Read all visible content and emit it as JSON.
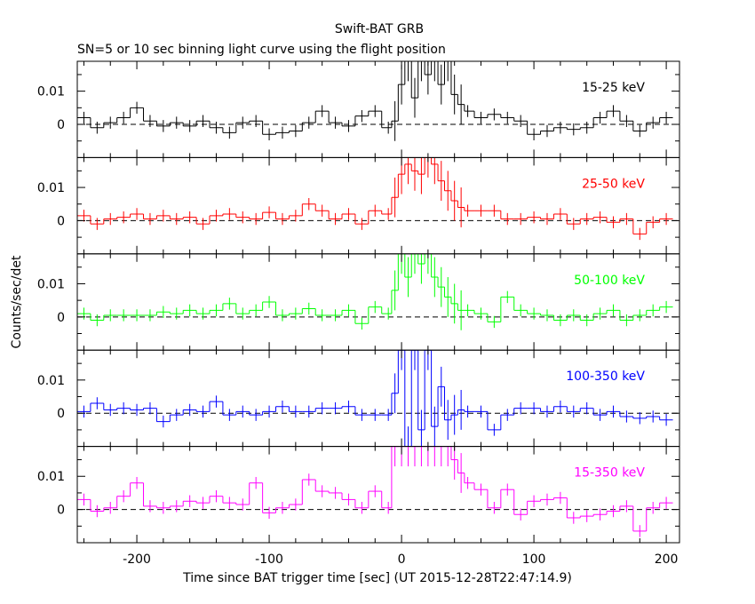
{
  "chart_data": {
    "type": "line",
    "title": "Swift-BAT GRB",
    "subtitle": "SN=5 or 10 sec binning light curve using the flight position",
    "xlabel": "Time since BAT trigger time [sec] (UT 2015-12-28T22:47:14.9)",
    "ylabel": "Counts/sec/det",
    "xlim": [
      -245,
      210
    ],
    "x_ticks": [
      -200,
      -100,
      0,
      100,
      200
    ],
    "grid": false,
    "reference_line": 0,
    "panels": [
      {
        "band": "15-25 keV",
        "color": "#000000",
        "ylim": [
          -0.01,
          0.019
        ],
        "y_ticks": [
          0,
          0.01
        ],
        "y_tick_labels": [
          "0",
          "0.01"
        ],
        "bins": [
          [
            -240,
            0.002
          ],
          [
            -230,
            -0.001
          ],
          [
            -220,
            0.0005
          ],
          [
            -210,
            0.002
          ],
          [
            -200,
            0.005
          ],
          [
            -190,
            0.001
          ],
          [
            -180,
            -0.0005
          ],
          [
            -170,
            0.0005
          ],
          [
            -160,
            -0.0005
          ],
          [
            -150,
            0.001
          ],
          [
            -140,
            -0.001
          ],
          [
            -130,
            -0.0025
          ],
          [
            -120,
            0.0005
          ],
          [
            -110,
            0.001
          ],
          [
            -100,
            -0.003
          ],
          [
            -90,
            -0.0025
          ],
          [
            -80,
            -0.002
          ],
          [
            -70,
            0.0005
          ],
          [
            -60,
            0.004
          ],
          [
            -50,
            0.0005
          ],
          [
            -40,
            -0.0005
          ],
          [
            -30,
            0.0025
          ],
          [
            -20,
            0.004
          ],
          [
            -10,
            -0.001
          ],
          [
            -5,
            0.001
          ],
          [
            0,
            0.012
          ],
          [
            5,
            0.019
          ],
          [
            10,
            0.008
          ],
          [
            15,
            0.019
          ],
          [
            20,
            0.015
          ],
          [
            25,
            0.019
          ],
          [
            30,
            0.012
          ],
          [
            35,
            0.019
          ],
          [
            40,
            0.009
          ],
          [
            45,
            0.006
          ],
          [
            50,
            0.004
          ],
          [
            60,
            0.002
          ],
          [
            70,
            0.003
          ],
          [
            80,
            0.002
          ],
          [
            90,
            0.001
          ],
          [
            100,
            -0.003
          ],
          [
            110,
            -0.002
          ],
          [
            120,
            -0.001
          ],
          [
            130,
            -0.0015
          ],
          [
            140,
            -0.001
          ],
          [
            150,
            0.002
          ],
          [
            160,
            0.004
          ],
          [
            170,
            0.001
          ],
          [
            180,
            -0.002
          ],
          [
            190,
            0.0005
          ],
          [
            200,
            0.002
          ]
        ]
      },
      {
        "band": "25-50 keV",
        "color": "#ff0000",
        "ylim": [
          -0.01,
          0.019
        ],
        "y_ticks": [
          0,
          0.01
        ],
        "y_tick_labels": [
          "0",
          "0.01"
        ],
        "bins": [
          [
            -240,
            0.0015
          ],
          [
            -230,
            -0.001
          ],
          [
            -220,
            0.0005
          ],
          [
            -210,
            0.001
          ],
          [
            -200,
            0.002
          ],
          [
            -190,
            0.0005
          ],
          [
            -180,
            0.0015
          ],
          [
            -170,
            0.0005
          ],
          [
            -160,
            0.001
          ],
          [
            -150,
            -0.001
          ],
          [
            -140,
            0.0015
          ],
          [
            -130,
            0.002
          ],
          [
            -120,
            0.001
          ],
          [
            -110,
            0.0005
          ],
          [
            -100,
            0.0025
          ],
          [
            -90,
            0.0005
          ],
          [
            -80,
            0.0015
          ],
          [
            -70,
            0.005
          ],
          [
            -60,
            0.003
          ],
          [
            -50,
            0.0005
          ],
          [
            -40,
            0.002
          ],
          [
            -30,
            -0.001
          ],
          [
            -20,
            0.003
          ],
          [
            -10,
            0.002
          ],
          [
            -5,
            0.007
          ],
          [
            0,
            0.014
          ],
          [
            5,
            0.017
          ],
          [
            10,
            0.015
          ],
          [
            15,
            0.014
          ],
          [
            20,
            0.019
          ],
          [
            25,
            0.017
          ],
          [
            30,
            0.012
          ],
          [
            35,
            0.009
          ],
          [
            40,
            0.006
          ],
          [
            45,
            0.004
          ],
          [
            50,
            0.003
          ],
          [
            60,
            0.003
          ],
          [
            70,
            0.003
          ],
          [
            80,
            0.0005
          ],
          [
            90,
            0.0005
          ],
          [
            100,
            0.001
          ],
          [
            110,
            0.0005
          ],
          [
            120,
            0.002
          ],
          [
            130,
            -0.001
          ],
          [
            140,
            0.0005
          ],
          [
            150,
            0.001
          ],
          [
            160,
            -0.0005
          ],
          [
            170,
            0.0005
          ],
          [
            180,
            -0.004
          ],
          [
            190,
            -0.0005
          ],
          [
            200,
            0.0005
          ]
        ]
      },
      {
        "band": "50-100 keV",
        "color": "#00ff00",
        "ylim": [
          -0.01,
          0.019
        ],
        "y_ticks": [
          0,
          0.01
        ],
        "y_tick_labels": [
          "0",
          "0.01"
        ],
        "bins": [
          [
            -240,
            0.001
          ],
          [
            -230,
            -0.001
          ],
          [
            -220,
            0.0005
          ],
          [
            -210,
            0.0005
          ],
          [
            -200,
            0.0005
          ],
          [
            -190,
            0.0005
          ],
          [
            -180,
            0.0015
          ],
          [
            -170,
            0.001
          ],
          [
            -160,
            0.002
          ],
          [
            -150,
            0.001
          ],
          [
            -140,
            0.002
          ],
          [
            -130,
            0.004
          ],
          [
            -120,
            0.001
          ],
          [
            -110,
            0.002
          ],
          [
            -100,
            0.0045
          ],
          [
            -90,
            0.0005
          ],
          [
            -80,
            0.001
          ],
          [
            -70,
            0.0025
          ],
          [
            -60,
            0.0005
          ],
          [
            -50,
            0.0005
          ],
          [
            -40,
            0.002
          ],
          [
            -30,
            -0.002
          ],
          [
            -20,
            0.003
          ],
          [
            -10,
            0.001
          ],
          [
            -5,
            0.008
          ],
          [
            0,
            0.019
          ],
          [
            5,
            0.012
          ],
          [
            10,
            0.019
          ],
          [
            15,
            0.016
          ],
          [
            20,
            0.019
          ],
          [
            25,
            0.012
          ],
          [
            30,
            0.009
          ],
          [
            35,
            0.006
          ],
          [
            40,
            0.004
          ],
          [
            45,
            0.002
          ],
          [
            50,
            0.002
          ],
          [
            60,
            0.001
          ],
          [
            70,
            -0.0015
          ],
          [
            80,
            0.006
          ],
          [
            90,
            0.002
          ],
          [
            100,
            0.001
          ],
          [
            110,
            0.0005
          ],
          [
            120,
            -0.001
          ],
          [
            130,
            0.0005
          ],
          [
            140,
            -0.001
          ],
          [
            150,
            0.001
          ],
          [
            160,
            0.002
          ],
          [
            170,
            -0.001
          ],
          [
            180,
            0.0005
          ],
          [
            190,
            0.002
          ],
          [
            200,
            0.003
          ]
        ]
      },
      {
        "band": "100-350 keV",
        "color": "#0000ff",
        "ylim": [
          -0.01,
          0.019
        ],
        "y_ticks": [
          0,
          0.01
        ],
        "y_tick_labels": [
          "0",
          "0.01"
        ],
        "bins": [
          [
            -240,
            0.0005
          ],
          [
            -230,
            0.003
          ],
          [
            -220,
            0.001
          ],
          [
            -210,
            0.0015
          ],
          [
            -200,
            0.001
          ],
          [
            -190,
            0.0015
          ],
          [
            -180,
            -0.0025
          ],
          [
            -170,
            -0.0005
          ],
          [
            -160,
            0.001
          ],
          [
            -150,
            0.0005
          ],
          [
            -140,
            0.0035
          ],
          [
            -130,
            -0.0005
          ],
          [
            -120,
            0.0005
          ],
          [
            -110,
            -0.0005
          ],
          [
            -100,
            0.0005
          ],
          [
            -90,
            0.002
          ],
          [
            -80,
            0.0005
          ],
          [
            -70,
            0.0005
          ],
          [
            -60,
            0.0015
          ],
          [
            -50,
            0.0015
          ],
          [
            -40,
            0.002
          ],
          [
            -30,
            -0.0005
          ],
          [
            -20,
            -0.0005
          ],
          [
            -10,
            -0.0005
          ],
          [
            -5,
            0.006
          ],
          [
            0,
            0.019
          ],
          [
            5,
            -0.01
          ],
          [
            10,
            0.019
          ],
          [
            15,
            -0.005
          ],
          [
            20,
            0.019
          ],
          [
            25,
            -0.004
          ],
          [
            30,
            0.008
          ],
          [
            35,
            -0.002
          ],
          [
            40,
            -0.0005
          ],
          [
            45,
            0.001
          ],
          [
            50,
            0.0005
          ],
          [
            60,
            0.0005
          ],
          [
            70,
            -0.005
          ],
          [
            80,
            -0.0005
          ],
          [
            90,
            0.0015
          ],
          [
            100,
            0.0015
          ],
          [
            110,
            0.0005
          ],
          [
            120,
            0.002
          ],
          [
            130,
            0.0005
          ],
          [
            140,
            0.0015
          ],
          [
            150,
            -0.0005
          ],
          [
            160,
            0.0005
          ],
          [
            170,
            -0.001
          ],
          [
            180,
            -0.0015
          ],
          [
            190,
            -0.001
          ],
          [
            200,
            -0.002
          ]
        ]
      },
      {
        "band": "15-350 keV",
        "color": "#ff00ff",
        "ylim": [
          -0.01,
          0.019
        ],
        "y_ticks": [
          0,
          0.01
        ],
        "y_tick_labels": [
          "0",
          "0.01"
        ],
        "bins": [
          [
            -240,
            0.003
          ],
          [
            -230,
            -0.0005
          ],
          [
            -220,
            0.0005
          ],
          [
            -210,
            0.004
          ],
          [
            -200,
            0.008
          ],
          [
            -190,
            0.001
          ],
          [
            -180,
            0.0005
          ],
          [
            -170,
            0.001
          ],
          [
            -160,
            0.0025
          ],
          [
            -150,
            0.002
          ],
          [
            -140,
            0.004
          ],
          [
            -130,
            0.002
          ],
          [
            -120,
            0.0015
          ],
          [
            -110,
            0.008
          ],
          [
            -100,
            -0.001
          ],
          [
            -90,
            0.0005
          ],
          [
            -80,
            0.0015
          ],
          [
            -70,
            0.009
          ],
          [
            -60,
            0.0055
          ],
          [
            -50,
            0.005
          ],
          [
            -40,
            0.003
          ],
          [
            -30,
            0.0005
          ],
          [
            -20,
            0.0055
          ],
          [
            -10,
            0.0005
          ],
          [
            -5,
            0.019
          ],
          [
            0,
            0.019
          ],
          [
            5,
            0.019
          ],
          [
            10,
            0.019
          ],
          [
            15,
            0.019
          ],
          [
            20,
            0.019
          ],
          [
            25,
            0.019
          ],
          [
            30,
            0.019
          ],
          [
            35,
            0.019
          ],
          [
            40,
            0.015
          ],
          [
            45,
            0.011
          ],
          [
            50,
            0.008
          ],
          [
            60,
            0.006
          ],
          [
            70,
            0.0005
          ],
          [
            80,
            0.006
          ],
          [
            90,
            -0.0015
          ],
          [
            100,
            0.0025
          ],
          [
            110,
            0.003
          ],
          [
            120,
            0.0035
          ],
          [
            130,
            -0.0025
          ],
          [
            140,
            -0.002
          ],
          [
            150,
            -0.0015
          ],
          [
            160,
            -0.0005
          ],
          [
            170,
            0.001
          ],
          [
            180,
            -0.0065
          ],
          [
            190,
            0.0005
          ],
          [
            200,
            0.002
          ]
        ]
      }
    ]
  }
}
